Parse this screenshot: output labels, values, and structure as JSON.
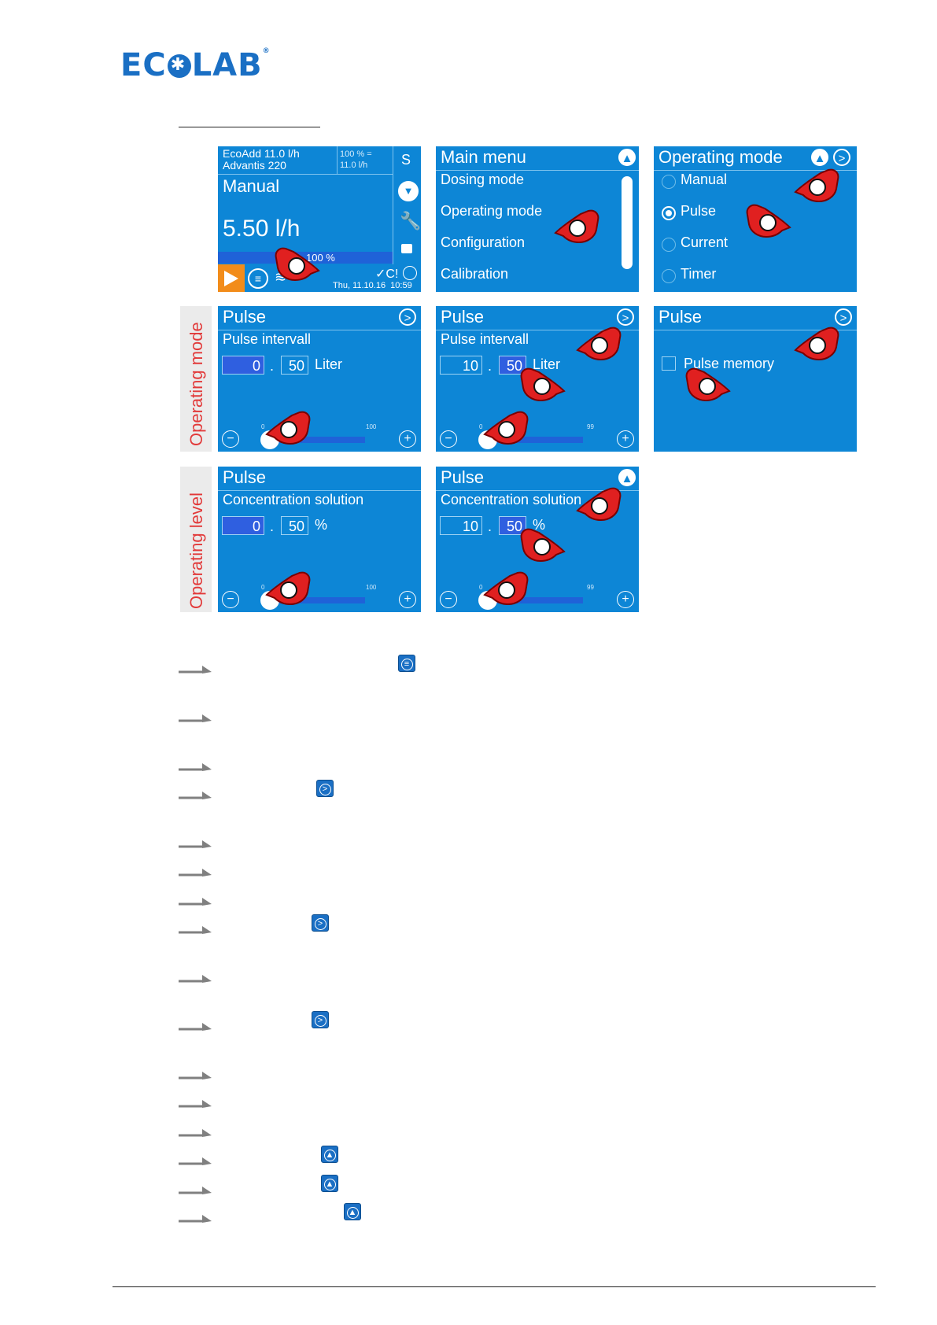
{
  "header": {
    "logo_text": "ECOLAB"
  },
  "side_labels": {
    "operating_mode": "Operating mode",
    "operating_level": "Operating level"
  },
  "screen_home": {
    "device_line1": "EcoAdd 11.0 l/h",
    "device_line2": "Advantis 220",
    "rate_line1": "100 % =",
    "rate_line2": "11.0 l/h",
    "s_button": "S",
    "mode": "Manual",
    "flow": "5.50 l/h",
    "percent": "100 %",
    "status": "✓C!",
    "datetime": "Thu, 11.10.16  10:59"
  },
  "screen_main_menu": {
    "title": "Main menu",
    "items": [
      "Dosing mode",
      "Operating mode",
      "Configuration",
      "Calibration"
    ]
  },
  "screen_operating_mode": {
    "title": "Operating mode",
    "options": [
      "Manual",
      "Pulse",
      "Current",
      "Timer"
    ],
    "selected": "Pulse"
  },
  "screen_pulse_a": {
    "title": "Pulse",
    "subtitle": "Pulse intervall",
    "int_value": "0",
    "dec_value": "50",
    "unit": "Liter",
    "tick_min": "0",
    "tick_max": "100"
  },
  "screen_pulse_b": {
    "title": "Pulse",
    "subtitle": "Pulse intervall",
    "int_value": "10",
    "dec_value": "50",
    "unit": "Liter",
    "tick_min": "0",
    "tick_max": "99"
  },
  "screen_pulse_c": {
    "title": "Pulse",
    "checkbox_label": "Pulse memory"
  },
  "screen_pulse_d": {
    "title": "Pulse",
    "subtitle": "Concentration solution",
    "int_value": "0",
    "dec_value": "50",
    "unit": "%",
    "tick_min": "0",
    "tick_max": "100"
  },
  "screen_pulse_e": {
    "title": "Pulse",
    "subtitle": "Concentration solution",
    "int_value": "10",
    "dec_value": "50",
    "unit": "%",
    "tick_min": "0",
    "tick_max": "99"
  },
  "common": {
    "dot": ".",
    "next": ">",
    "minus": "−",
    "plus": "+",
    "up": "▲"
  },
  "colors": {
    "screen_blue": "#0d86d6",
    "brand_blue": "#1a6fc4",
    "accent_red": "#e23a3a",
    "orange": "#f28c1a"
  }
}
